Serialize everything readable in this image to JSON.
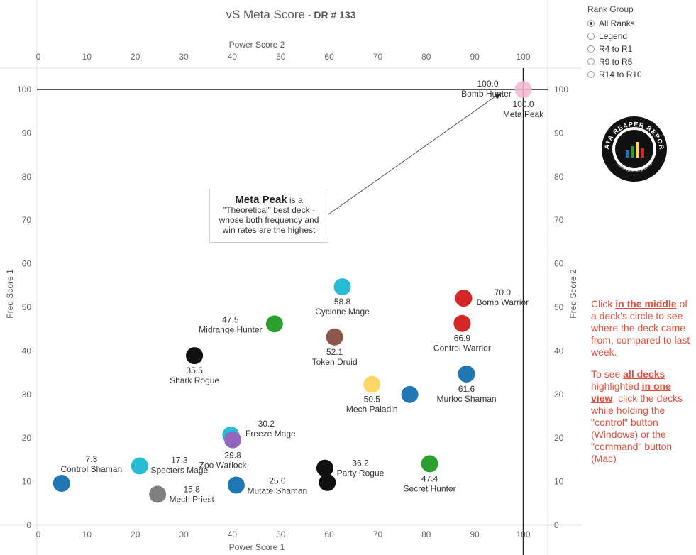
{
  "title": {
    "main": "vS Meta Score",
    "sub": " - DR # 133"
  },
  "rank_group": {
    "title": "Rank Group",
    "options": [
      "All Ranks",
      "Legend",
      "R4 to R1",
      "R9 to R5",
      "R14 to R10"
    ],
    "selected": "All Ranks"
  },
  "callout": {
    "head": "Meta Peak",
    "lines": [
      " is a",
      "\"Theoretical\" best deck -",
      "whose both frequency and",
      "win rates are the highest"
    ]
  },
  "side_note": {
    "p1": [
      "Click ",
      "in the middle",
      " of a deck's circle to see where the deck came from, compared to last week."
    ],
    "p2": [
      "To see ",
      "all decks",
      " highlighted ",
      "in one view",
      ", click the decks while holding the \"control\" button (Windows) or the \"command\" button (Mac)"
    ]
  },
  "logo": {
    "text": "DATA REAPER REPORT",
    "subtext": "vicious syndicate presents"
  },
  "chart_data": {
    "type": "scatter",
    "xlabel_bottom": "Power Score 1",
    "xlabel_top": "Power Score 2",
    "ylabel_left": "Freq Score 1",
    "ylabel_right": "Freq Score 2",
    "xlim": [
      0,
      105
    ],
    "ylim": [
      0,
      105
    ],
    "xticks": [
      0,
      10,
      20,
      30,
      40,
      50,
      60,
      70,
      80,
      90,
      100
    ],
    "yticks": [
      0,
      10,
      20,
      30,
      40,
      50,
      60,
      70,
      80,
      90,
      100
    ],
    "reference_lines": {
      "x": 100,
      "y": 100
    },
    "points": [
      {
        "name": "Bomb Hunter",
        "label": "100.0",
        "x": 100.0,
        "y": 100.0,
        "color": "#f2b6cf",
        "label_pos": "left"
      },
      {
        "name": "Meta Peak",
        "label": "100.0",
        "x": 100.0,
        "y": 100.0,
        "color": "none",
        "label_pos": "below"
      },
      {
        "name": "Cyclone Mage",
        "label": "58.8",
        "x": 62.7,
        "y": 54.7,
        "color": "#26bcd3",
        "label_pos": "below"
      },
      {
        "name": "Bomb Warrior",
        "label": "70.0",
        "x": 87.7,
        "y": 52.1,
        "color": "#d62728",
        "label_pos": "right"
      },
      {
        "name": "Control Warrior",
        "label": "66.9",
        "x": 87.4,
        "y": 46.3,
        "color": "#d62728",
        "label_pos": "below"
      },
      {
        "name": "Midrange Hunter",
        "label": "47.5",
        "x": 48.7,
        "y": 46.2,
        "color": "#2ca02c",
        "label_pos": "left"
      },
      {
        "name": "Token Druid",
        "label": "52.1",
        "x": 61.1,
        "y": 43.2,
        "color": "#8c564b",
        "label_pos": "below"
      },
      {
        "name": "Shark Rogue",
        "label": "35.5",
        "x": 32.2,
        "y": 38.9,
        "color": "#111111",
        "label_pos": "below"
      },
      {
        "name": "Murloc Shaman",
        "label": "61.6",
        "x": 88.3,
        "y": 34.7,
        "color": "#1f77b4",
        "label_pos": "below"
      },
      {
        "name": "Mech Paladin",
        "label": "50.5",
        "x": 68.8,
        "y": 32.3,
        "color": "#fdd766",
        "label_pos": "below"
      },
      {
        "name": "",
        "label": "",
        "x": 76.6,
        "y": 30.0,
        "color": "#1f77b4",
        "label_pos": "none"
      },
      {
        "name": "Freeze Mage",
        "label": "30.2",
        "x": 39.7,
        "y": 20.7,
        "color": "#26bcd3",
        "label_pos": "right"
      },
      {
        "name": "Zoo Warlock",
        "label": "29.8",
        "x": 40.1,
        "y": 19.6,
        "color": "#9467bd",
        "label_pos": "below"
      },
      {
        "name": "Secret Hunter",
        "label": "47.4",
        "x": 80.7,
        "y": 14.1,
        "color": "#2ca02c",
        "label_pos": "below"
      },
      {
        "name": "Specters Mage",
        "label": "17.3",
        "x": 20.9,
        "y": 13.6,
        "color": "#26bcd3",
        "label_pos": "right"
      },
      {
        "name": "Party Rogue",
        "label": "36.2",
        "x": 59.1,
        "y": 13.1,
        "color": "#111111",
        "label_pos": "right"
      },
      {
        "name": "",
        "label": "",
        "x": 59.6,
        "y": 9.8,
        "color": "#111111",
        "label_pos": "none"
      },
      {
        "name": "Control Shaman",
        "label": "7.3",
        "x": 4.8,
        "y": 9.6,
        "color": "#1f77b4",
        "label_pos": "above"
      },
      {
        "name": "Mutate Shaman",
        "label": "25.0",
        "x": 40.8,
        "y": 9.2,
        "color": "#1f77b4",
        "label_pos": "right"
      },
      {
        "name": "Mech Priest",
        "label": "15.8",
        "x": 24.6,
        "y": 7.1,
        "color": "#808080",
        "label_pos": "right"
      }
    ]
  }
}
